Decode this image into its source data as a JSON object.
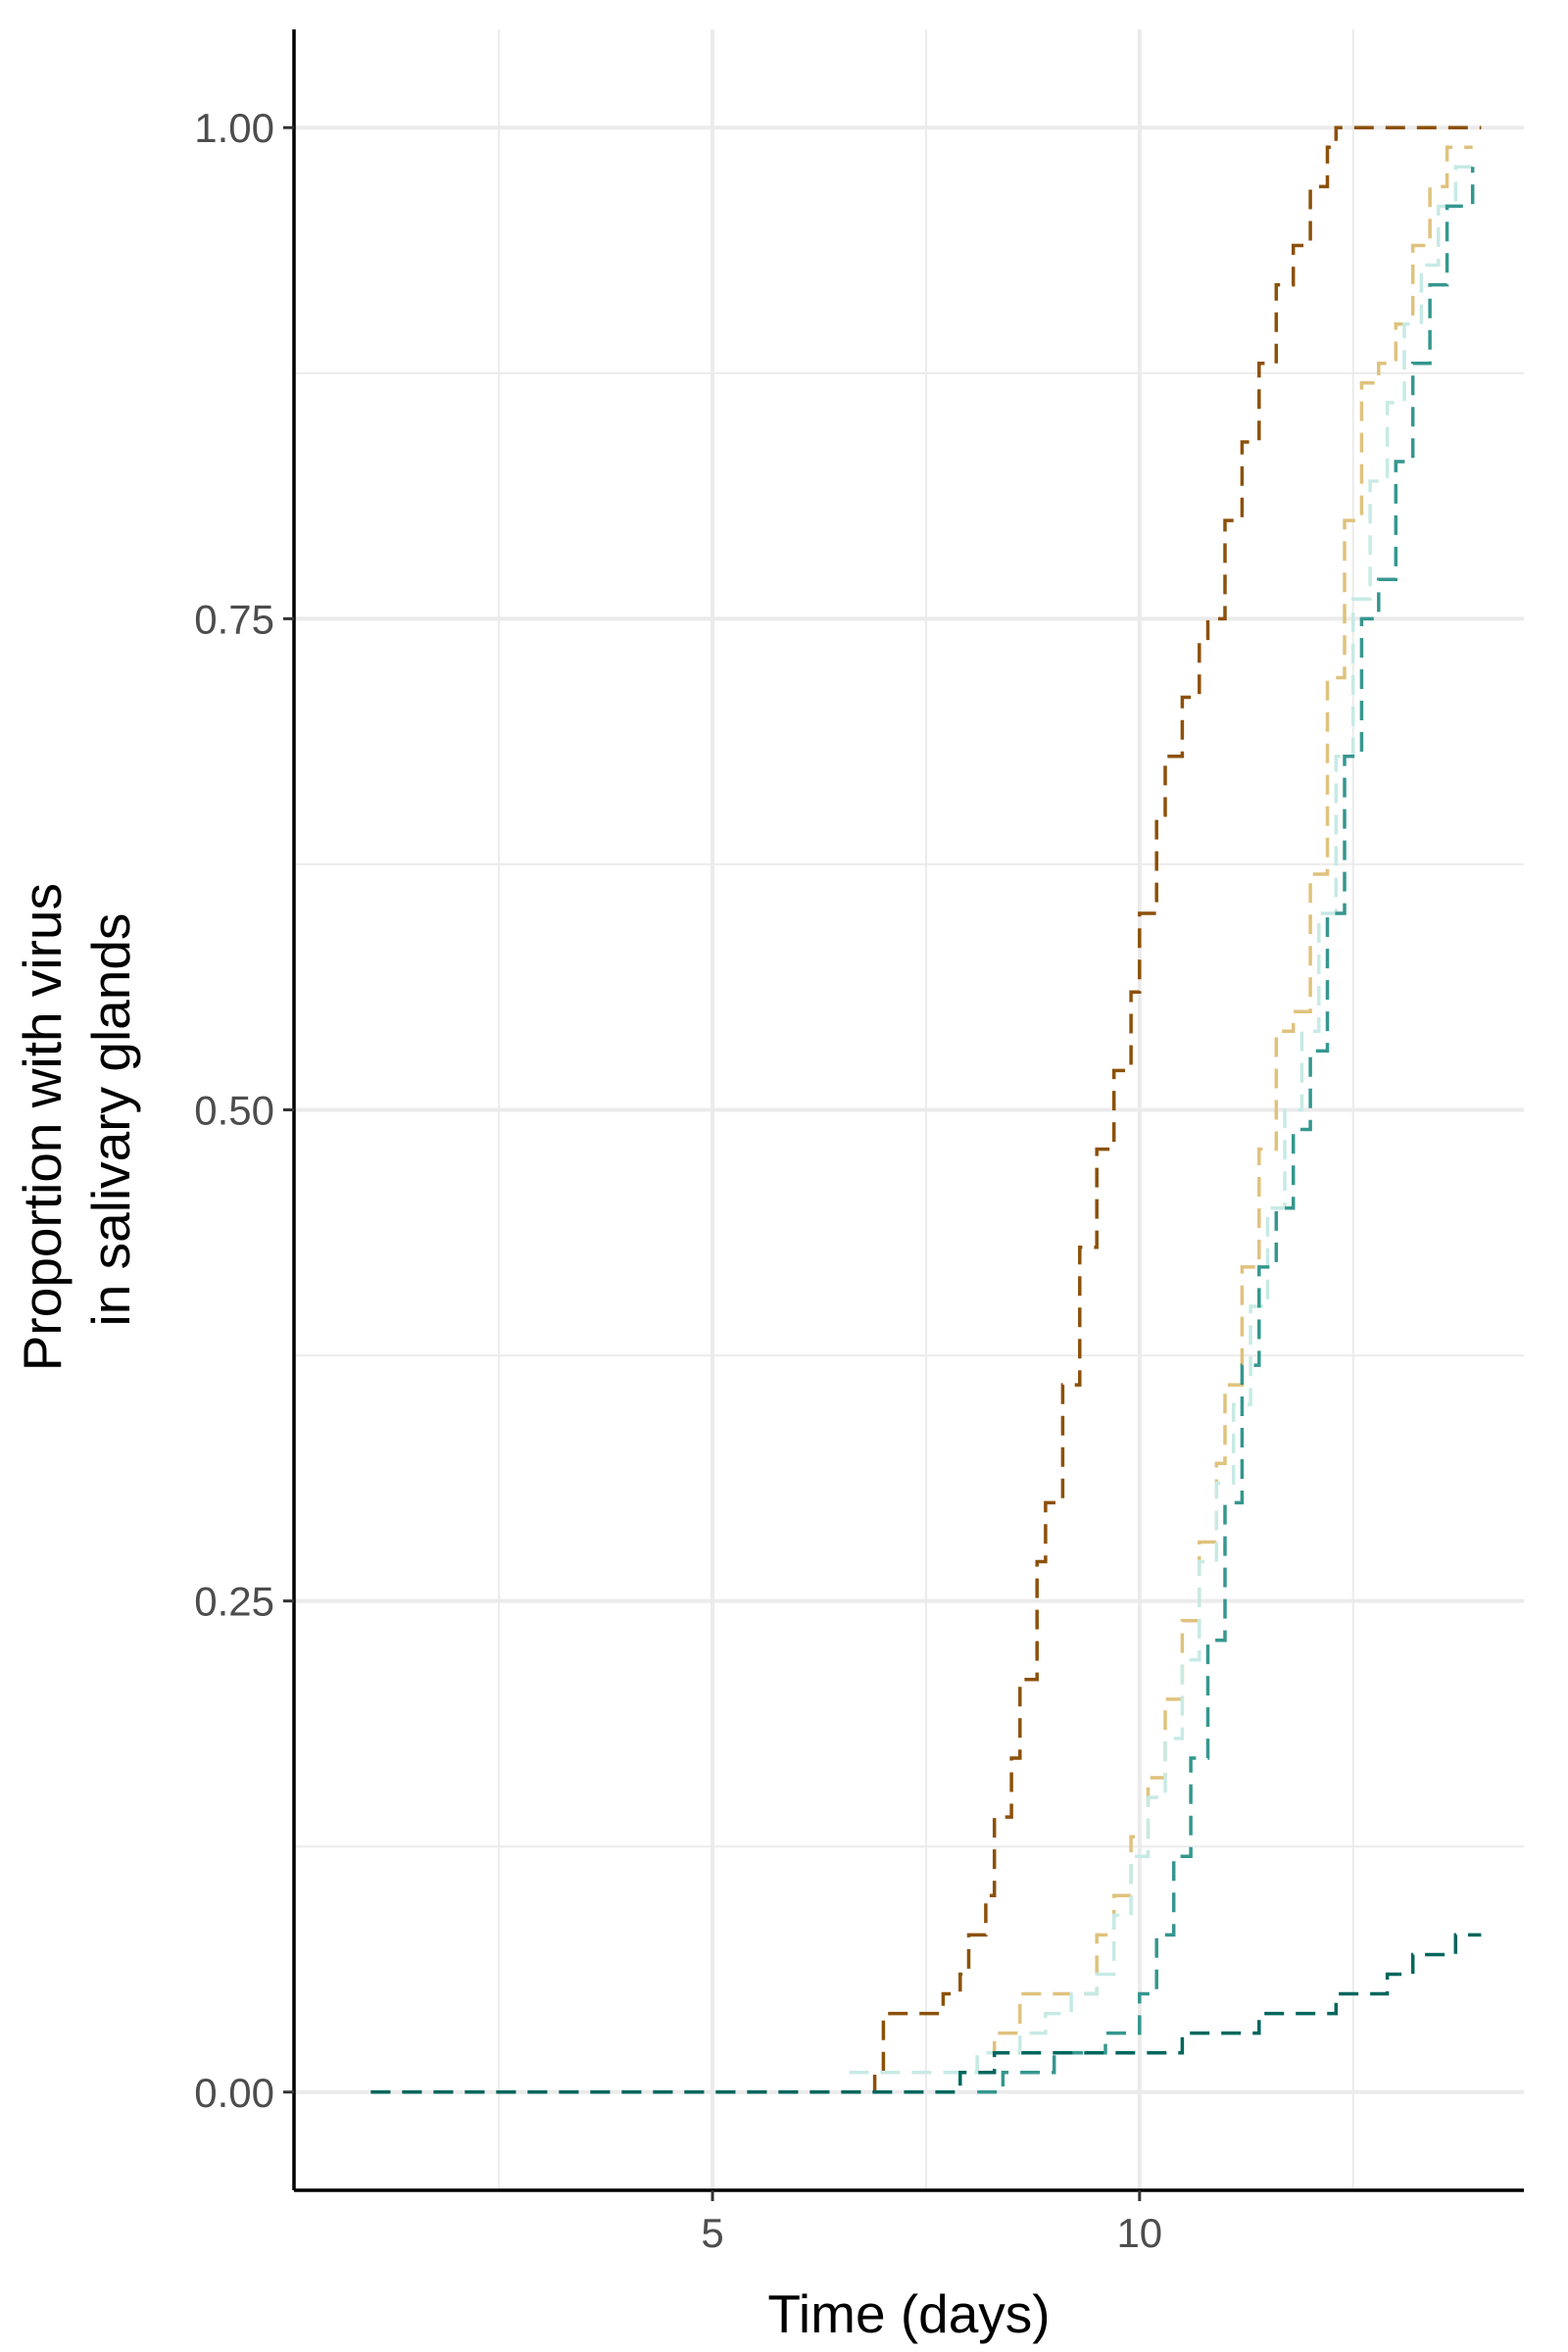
{
  "chart_data": {
    "type": "line",
    "title": "",
    "xlabel": "Time (days)",
    "ylabel": [
      "Proportion with virus",
      "in salivary glands"
    ],
    "xlim": [
      0.1,
      14.5
    ],
    "ylim": [
      -0.05,
      1.05
    ],
    "x_ticks": [
      5,
      10
    ],
    "x_tick_labels": [
      "5",
      "10"
    ],
    "y_ticks": [
      0,
      0.25,
      0.5,
      0.75,
      1.0
    ],
    "y_tick_labels": [
      "0.00",
      "0.25",
      "0.50",
      "0.75",
      "1.00"
    ],
    "grid": true,
    "legend": "none",
    "series": [
      {
        "color": "#8c510a",
        "x": [
          1.0,
          6.7,
          6.9,
          7.0,
          7.5,
          7.7,
          7.9,
          8.0,
          8.2,
          8.3,
          8.5,
          8.6,
          8.8,
          8.9,
          9.1,
          9.3,
          9.5,
          9.7,
          9.9,
          10.0,
          10.2,
          10.3,
          10.5,
          10.7,
          10.8,
          11.0,
          11.2,
          11.4,
          11.6,
          11.8,
          12.0,
          12.2,
          12.3,
          14.0
        ],
        "y": [
          0,
          0,
          0.01,
          0.04,
          0.04,
          0.05,
          0.06,
          0.08,
          0.1,
          0.14,
          0.17,
          0.21,
          0.27,
          0.3,
          0.36,
          0.43,
          0.48,
          0.52,
          0.56,
          0.6,
          0.65,
          0.68,
          0.71,
          0.74,
          0.75,
          0.8,
          0.84,
          0.88,
          0.92,
          0.94,
          0.97,
          0.99,
          1.0,
          1.0
        ]
      },
      {
        "color": "#dfc27d",
        "x": [
          6.6,
          7.3,
          7.9,
          8.1,
          8.3,
          8.6,
          8.8,
          9.2,
          9.5,
          9.7,
          9.9,
          10.1,
          10.3,
          10.5,
          10.7,
          10.9,
          11.0,
          11.2,
          11.4,
          11.6,
          11.8,
          12.0,
          12.2,
          12.4,
          12.6,
          12.8,
          13.0,
          13.2,
          13.4,
          13.6,
          13.9
        ],
        "y": [
          0.01,
          0.01,
          0.01,
          0.02,
          0.03,
          0.05,
          0.05,
          0.05,
          0.08,
          0.1,
          0.13,
          0.16,
          0.2,
          0.24,
          0.28,
          0.32,
          0.36,
          0.42,
          0.48,
          0.54,
          0.55,
          0.62,
          0.72,
          0.8,
          0.87,
          0.88,
          0.9,
          0.94,
          0.97,
          0.99,
          0.99
        ]
      },
      {
        "color": "#c7eae5",
        "x": [
          6.6,
          7.3,
          7.9,
          8.1,
          8.3,
          8.6,
          8.9,
          9.2,
          9.5,
          9.7,
          9.9,
          10.1,
          10.3,
          10.5,
          10.7,
          10.9,
          11.1,
          11.3,
          11.5,
          11.7,
          11.9,
          12.1,
          12.3,
          12.5,
          12.7,
          12.9,
          13.1,
          13.3,
          13.5,
          13.7,
          13.9
        ],
        "y": [
          0.01,
          0.01,
          0.01,
          0.02,
          0.02,
          0.03,
          0.04,
          0.05,
          0.06,
          0.09,
          0.12,
          0.15,
          0.18,
          0.22,
          0.27,
          0.31,
          0.35,
          0.4,
          0.45,
          0.5,
          0.54,
          0.6,
          0.68,
          0.76,
          0.82,
          0.86,
          0.9,
          0.93,
          0.96,
          0.98,
          0.98
        ]
      },
      {
        "color": "#35978f",
        "x": [
          8.1,
          8.4,
          8.7,
          9.0,
          9.3,
          9.6,
          9.8,
          10.0,
          10.2,
          10.4,
          10.6,
          10.8,
          11.0,
          11.2,
          11.4,
          11.6,
          11.8,
          12.0,
          12.2,
          12.4,
          12.6,
          12.8,
          13.0,
          13.2,
          13.4,
          13.6,
          13.9
        ],
        "y": [
          0.0,
          0.01,
          0.01,
          0.02,
          0.02,
          0.03,
          0.03,
          0.05,
          0.08,
          0.12,
          0.17,
          0.23,
          0.3,
          0.37,
          0.42,
          0.45,
          0.49,
          0.53,
          0.6,
          0.68,
          0.75,
          0.77,
          0.83,
          0.88,
          0.92,
          0.96,
          0.98
        ]
      },
      {
        "color": "#01665e",
        "x": [
          1.0,
          7.7,
          7.9,
          8.0,
          8.3,
          8.5,
          9.0,
          9.5,
          10.2,
          10.5,
          11.1,
          11.4,
          11.6,
          12.0,
          12.3,
          12.6,
          12.9,
          13.2,
          13.5,
          13.7,
          14.0
        ],
        "y": [
          0,
          0,
          0.01,
          0.01,
          0.02,
          0.02,
          0.02,
          0.02,
          0.02,
          0.03,
          0.03,
          0.04,
          0.04,
          0.04,
          0.05,
          0.05,
          0.06,
          0.07,
          0.07,
          0.08,
          0.08
        ]
      }
    ]
  }
}
